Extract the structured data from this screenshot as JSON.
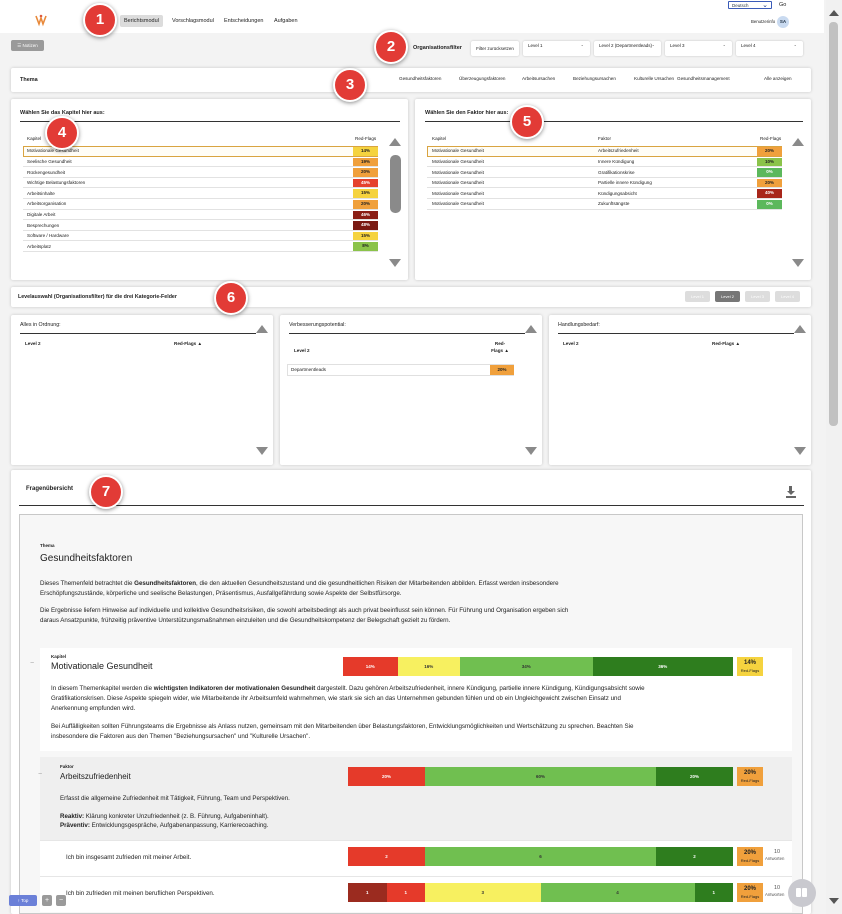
{
  "annotations": [
    "1",
    "2",
    "3",
    "4",
    "5",
    "6",
    "7"
  ],
  "nav": {
    "tabs": [
      "Berichtsmodul",
      "Vorschlagsmodul",
      "Entscheidungen",
      "Aufgaben"
    ],
    "active": 0,
    "language": "Deutsch",
    "go": "Go",
    "user": "Benutzerinfo",
    "avatar": "SA"
  },
  "notes_button": "☰ Notizen",
  "org_filter": {
    "title": "Organisationsfilter",
    "reset": "Filter zurücksetzen",
    "levels": [
      {
        "label": "Level 1",
        "value": "-"
      },
      {
        "label": "Level 2 (Departmentleads)",
        "value": "-"
      },
      {
        "label": "Level 3",
        "value": "-"
      },
      {
        "label": "Level 4",
        "value": "-"
      }
    ]
  },
  "thema": {
    "title": "Thema",
    "tabs": [
      "Gesundheitsfaktoren",
      "Überzeugungsfaktoren",
      "Arbeitsursachen",
      "Beziehungsursachen",
      "Kulturelle Ursachen",
      "Gesundheitsmanagement",
      "Alle anzeigen"
    ]
  },
  "chapters": {
    "title": "Wählen Sie das Kapitel hier aus:",
    "columns": [
      "Kapitel",
      "Red-Flags"
    ],
    "selected": 0,
    "rows": [
      {
        "name": "Motivationale Gesundheit",
        "red_flags": "14%",
        "color": "#f5d33f"
      },
      {
        "name": "Seelische Gesundheit",
        "red_flags": "19%",
        "color": "#f0a03c"
      },
      {
        "name": "Rückengesundheit",
        "red_flags": "20%",
        "color": "#f0a03c"
      },
      {
        "name": "Wichtige Belastungsfaktoren",
        "red_flags": "45%",
        "color": "#e5412c"
      },
      {
        "name": "Arbeitsinhalte",
        "red_flags": "15%",
        "color": "#f5d33f"
      },
      {
        "name": "Arbeitsorganisation",
        "red_flags": "20%",
        "color": "#f0a03c"
      },
      {
        "name": "Digitale Arbeit",
        "red_flags": "46%",
        "color": "#8b1e15"
      },
      {
        "name": "Besprechungen",
        "red_flags": "48%",
        "color": "#7a1a12"
      },
      {
        "name": "Software / Hardware",
        "red_flags": "15%",
        "color": "#f5d33f"
      },
      {
        "name": "Arbeitsplatz",
        "red_flags": "8%",
        "color": "#8bc34a"
      }
    ]
  },
  "factors": {
    "title": "Wählen Sie den Faktor hier aus:",
    "columns": [
      "Kapitel",
      "Faktor",
      "Red-Flags"
    ],
    "selected": 0,
    "rows": [
      {
        "chapter": "Motivationale Gesundheit",
        "factor": "Arbeitszufriedenheit",
        "red_flags": "20%",
        "color": "#f0a03c"
      },
      {
        "chapter": "Motivationale Gesundheit",
        "factor": "Innere Kündigung",
        "red_flags": "10%",
        "color": "#8bc34a"
      },
      {
        "chapter": "Motivationale Gesundheit",
        "factor": "Gratifikationskrise",
        "red_flags": "0%",
        "color": "#5cb85c"
      },
      {
        "chapter": "Motivationale Gesundheit",
        "factor": "Partielle innere Kündigung",
        "red_flags": "20%",
        "color": "#f0a03c"
      },
      {
        "chapter": "Motivationale Gesundheit",
        "factor": "Kündigungsabsicht",
        "red_flags": "40%",
        "color": "#a8261a"
      },
      {
        "chapter": "Motivationale Gesundheit",
        "factor": "Zukunftsängste",
        "red_flags": "0%",
        "color": "#5cb85c"
      }
    ]
  },
  "level_selection": {
    "title": "Levelauswahl (Organisationsfilter) für die drei Kategorie-Felder",
    "buttons": [
      "Level 1",
      "Level 2",
      "Level 3",
      "Level 4"
    ],
    "active": 1
  },
  "categories": [
    {
      "title": "Alles in Ordnung:",
      "columns": [
        "Level 2",
        "Red-Flags ▲"
      ],
      "rows": []
    },
    {
      "title": "Verbesserungspotential:",
      "columns": [
        "Level 2",
        "Red-Flags ▲"
      ],
      "rows": [
        {
          "name": "Departmentleads",
          "red_flags": "20%",
          "color": "#f0a03c"
        }
      ]
    },
    {
      "title": "Handlungsbedarf:",
      "columns": [
        "Level 2",
        "Red-Flags ▲"
      ],
      "rows": []
    }
  ],
  "overview": {
    "title": "Fragenübersicht",
    "theme_label": "Thema",
    "theme_title": "Gesundheitsfaktoren",
    "paragraphs": [
      [
        {
          "text": "Dieses Themenfeld betrachtet die "
        },
        {
          "text": "Gesundheitsfaktoren",
          "bold": true
        },
        {
          "text": ", die den aktuellen Gesundheitszustand und die gesundheitlichen Risiken der Mitarbeitenden abbilden. Erfasst werden insbesondere Erschöpfungszustände, körperliche und seelische Belastungen, Präsentismus, Ausfallgefährdung sowie Aspekte der Selbstfürsorge."
        }
      ],
      [
        {
          "text": "Die Ergebnisse liefern Hinweise auf individuelle und kollektive Gesundheitsrisiken, die sowohl arbeitsbedingt als auch privat beeinflusst sein können. Für Führung und Organisation ergeben sich daraus Ansatzpunkte, frühzeitig präventive Unterstützungsmaßnahmen einzuleiten und die Gesundheitskompetenz der Belegschaft gezielt zu fördern."
        }
      ]
    ],
    "chapter": {
      "toggle": "−",
      "label": "Kapitel",
      "title": "Motivationale Gesundheit",
      "bar": {
        "values": [
          14,
          16,
          34,
          36
        ],
        "value_labels": [
          "14%",
          "16%",
          "34%",
          "36%"
        ],
        "colors": [
          "#e53a2a",
          "#f7f060",
          "#70bf50",
          "#2e7d1e"
        ]
      },
      "badge": {
        "value": "14%",
        "label": "Red-Flags",
        "color": "#f5d33f"
      },
      "paragraphs": [
        [
          {
            "text": "In diesem Themenkapitel werden die "
          },
          {
            "text": "wichtigsten Indikatoren der motivationalen Gesundheit",
            "bold": true
          },
          {
            "text": " dargestellt. Dazu gehören Arbeitszufriedenheit, innere Kündigung, partielle innere Kündigung, Kündigungsabsicht sowie Gratifikationskrisen. Diese Aspekte spiegeln wider, wie Mitarbeitende ihr Arbeitsumfeld wahrnehmen, wie stark sie sich an das Unternehmen gebunden fühlen und ob ein Ungleichgewicht zwischen Einsatz und Anerkennung empfunden wird."
          }
        ],
        [
          {
            "text": "Bei Auffälligkeiten sollten Führungsteams die Ergebnisse als Anlass nutzen, gemeinsam mit den Mitarbeitenden über Belastungsfaktoren, Entwicklungsmöglichkeiten und Wertschätzung zu sprechen. Beachten Sie insbesondere die Faktoren aus den Themen \"Beziehungsursachen\" und \"Kulturelle Ursachen\"."
          }
        ]
      ]
    },
    "factor": {
      "toggle": "−",
      "label": "Faktor",
      "title": "Arbeitszufriedenheit",
      "bar": {
        "values": [
          20,
          60,
          20
        ],
        "value_labels": [
          "20%",
          "60%",
          "20%"
        ],
        "colors": [
          "#e53a2a",
          "#70bf50",
          "#2e7d1e"
        ]
      },
      "badge": {
        "value": "20%",
        "label": "Red-Flags",
        "color": "#f0a03c"
      },
      "paragraphs": [
        [
          {
            "text": "Erfasst die allgemeine Zufriedenheit mit Tätigkeit, Führung, Team und Perspektiven."
          }
        ],
        [
          {
            "text": "Reaktiv:",
            "bold": true
          },
          {
            "text": " Klärung konkreter Unzufriedenheit (z. B. Führung, Aufgabeninhalt)."
          }
        ],
        [
          {
            "text": "Präventiv:",
            "bold": true
          },
          {
            "text": " Entwicklungsgespräche, Aufgabenanpassung, Karrierecoaching."
          }
        ]
      ]
    },
    "questions": [
      {
        "text": "Ich bin insgesamt zufrieden mit meiner Arbeit.",
        "bar": {
          "values": [
            2,
            6,
            2
          ],
          "colors": [
            "#e53a2a",
            "#70bf50",
            "#2e7d1e"
          ]
        },
        "badge": {
          "value": "20%",
          "label": "Red-Flags",
          "color": "#f0a03c"
        },
        "count": "10",
        "count_label": "Antworten"
      },
      {
        "text": "Ich bin zufrieden mit meinen beruflichen Perspektiven.",
        "bar": {
          "values": [
            1,
            1,
            3,
            4,
            1
          ],
          "colors": [
            "#9b2b1f",
            "#e53a2a",
            "#f7f060",
            "#70bf50",
            "#2e7d1e"
          ]
        },
        "badge": {
          "value": "20%",
          "label": "Red-Flags",
          "color": "#f0a03c"
        },
        "count": "10",
        "count_label": "Antworten"
      }
    ]
  },
  "footer": {
    "top_button": "↑ Top",
    "expand": "+",
    "collapse": "−"
  }
}
